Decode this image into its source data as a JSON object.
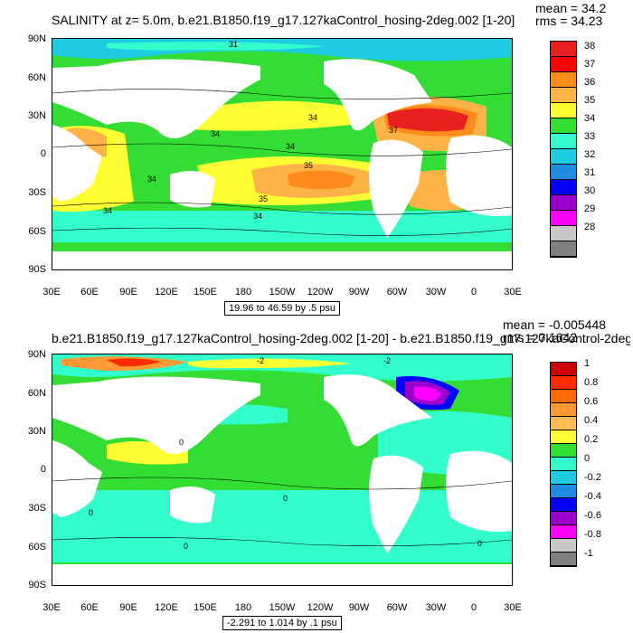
{
  "top": {
    "title": "SALINITY at z=   5.0m, b.e21.B1850.f19_g17.127kaControl_hosing-2deg.002 [1-20]",
    "mean": "mean = 34.2",
    "rms": "rms = 34.23",
    "range": "19.96 to 46.59 by .5 psu",
    "contour_labels": [
      "31",
      "34",
      "34",
      "34",
      "37",
      "35",
      "34",
      "35",
      "34",
      "34"
    ],
    "colorbar": {
      "labels": [
        "38",
        "37",
        "36",
        "35",
        "34",
        "33",
        "32",
        "31",
        "30",
        "29",
        "28"
      ],
      "colors": [
        "#e8201f",
        "#ff0000",
        "#ff8c1a",
        "#ffb347",
        "#ffff33",
        "#33dd33",
        "#33ffcc",
        "#1ecbe1",
        "#1e8de1",
        "#0000ff",
        "#9900cc",
        "#ff00ff",
        "#c8c8c8",
        "#808080"
      ]
    }
  },
  "bottom": {
    "title": "b.e21.B1850.f19_g17.127kaControl_hosing-2deg.002 [1-20] - b.e21.B1850.f19_g17.127kaControl-2deg.",
    "mean": "mean = -0.005448",
    "rms": "rms = 0.1642",
    "range": "-2.291 to 1.014 by .1 psu",
    "contour_labels": [
      "-2",
      "-2",
      "0",
      "0",
      "0",
      "0",
      "0"
    ],
    "colorbar": {
      "labels": [
        "1",
        "0.8",
        "0.6",
        "0.4",
        "0.2",
        "0",
        "-0.2",
        "-0.4",
        "-0.6",
        "-0.8",
        "-1"
      ],
      "colors": [
        "#cc0000",
        "#ff2a00",
        "#ff6a00",
        "#ff9933",
        "#ffbb55",
        "#ffff33",
        "#33dd33",
        "#33ffcc",
        "#1ecbe1",
        "#1e8de1",
        "#0000ff",
        "#9900cc",
        "#ff00ff",
        "#c8c8c8",
        "#808080"
      ]
    }
  },
  "axes": {
    "lat_labels": [
      "90N",
      "60N",
      "30N",
      "0",
      "30S",
      "60S",
      "90S"
    ],
    "lon_labels": [
      "30E",
      "60E",
      "90E",
      "120E",
      "150E",
      "180",
      "150W",
      "120W",
      "90W",
      "60W",
      "30W",
      "0",
      "30E"
    ]
  }
}
